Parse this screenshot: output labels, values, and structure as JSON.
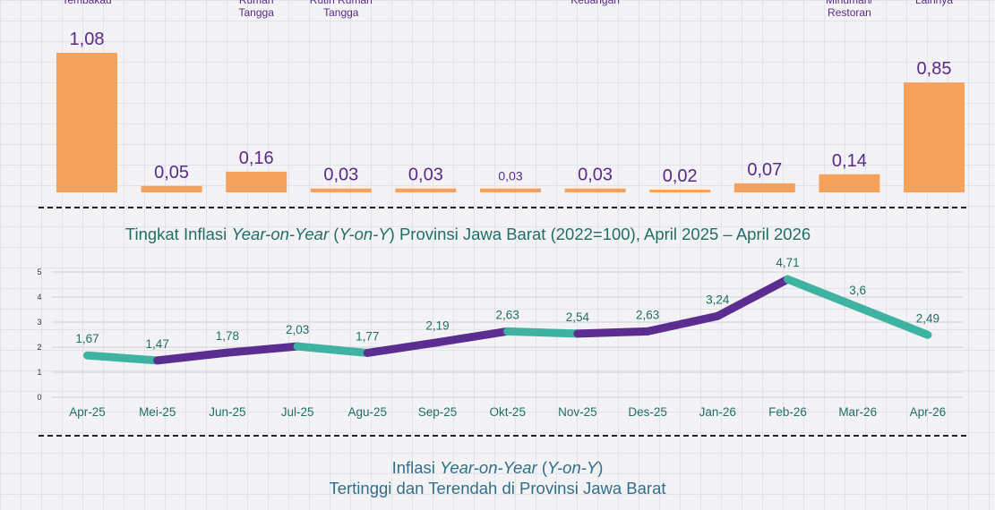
{
  "chart_data": [
    {
      "type": "bar",
      "categories": [
        "Tembakau",
        "",
        "Rumah\nTangga",
        "Rutin Rumah\nTangga",
        "",
        "",
        "Keuangan",
        "",
        "",
        "Minuman/\nRestoran",
        "Lainnya"
      ],
      "values": [
        1.08,
        0.05,
        0.16,
        0.03,
        0.03,
        0.03,
        0.03,
        0.02,
        0.07,
        0.14,
        0.85
      ],
      "value_labels": [
        "1,08",
        "0,05",
        "0,16",
        "0,03",
        "0,03",
        "0,03",
        "0,03",
        "0,02",
        "0,07",
        "0,14",
        "0,85"
      ],
      "color": "#f7a25c",
      "ylim": [
        0,
        1.08
      ]
    },
    {
      "type": "line",
      "title": "Tingkat Inflasi Year-on-Year (Y-on-Y) Provinsi Jawa Barat (2022=100), April 2025 – April 2026",
      "title_parts": {
        "pre": "Tingkat Inflasi ",
        "it1": "Year-on-Year",
        "mid": " (",
        "it2": "Y-on-Y",
        "post": ") Provinsi Jawa Barat (2022=100), April 2025 – April 2026"
      },
      "x": [
        "Apr-25",
        "Mei-25",
        "Jun-25",
        "Jul-25",
        "Agu-25",
        "Sep-25",
        "Okt-25",
        "Nov-25",
        "Des-25",
        "Jan-26",
        "Feb-26",
        "Mar-26",
        "Apr-26"
      ],
      "values": [
        1.67,
        1.47,
        1.78,
        2.03,
        1.77,
        2.19,
        2.63,
        2.54,
        2.63,
        3.24,
        4.71,
        3.6,
        2.49
      ],
      "value_labels": [
        "1,67",
        "1,47",
        "1,78",
        "2,03",
        "1,77",
        "2,19",
        "2,63",
        "2,54",
        "2,63",
        "3,24",
        "4,71",
        "3,6",
        "2,49"
      ],
      "yticks": [
        "0",
        "1",
        "2",
        "3",
        "4",
        "5"
      ],
      "ylim": [
        0,
        5
      ],
      "grid": true,
      "colors": {
        "rise": "#5b2d90",
        "fall": "#3fb3a2"
      }
    }
  ],
  "footer": {
    "line1_pre": "Inflasi ",
    "line1_it1": "Year-on-Year",
    "line1_mid": " (",
    "line1_it2": "Y-on-Y",
    "line1_post": ")",
    "line2": "Tertinggi dan Terendah di Provinsi Jawa Barat"
  }
}
